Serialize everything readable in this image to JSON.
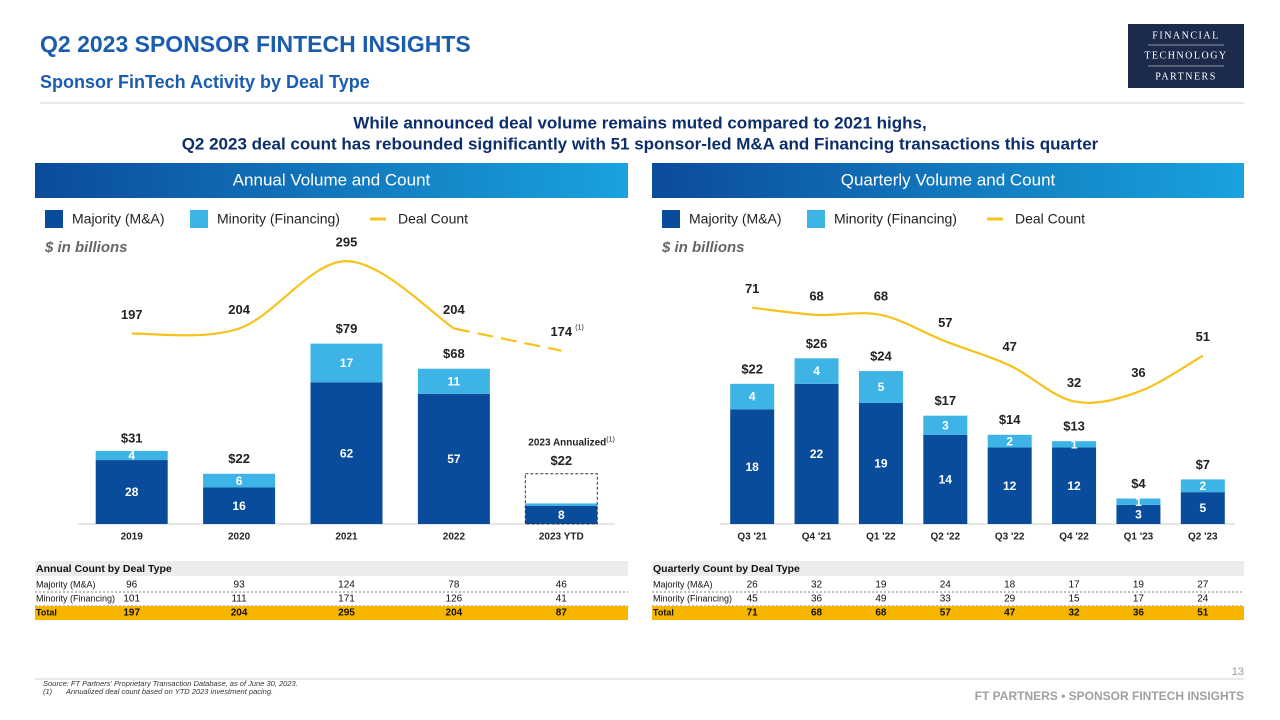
{
  "header": {
    "title": "Q2 2023 SPONSOR FINTECH INSIGHTS",
    "subtitle": "Sponsor FinTech Activity by Deal Type",
    "logo": [
      "FINANCIAL",
      "TECHNOLOGY",
      "PARTNERS"
    ]
  },
  "headline": [
    "While announced deal volume remains muted compared to 2021 highs,",
    "Q2 2023 deal count has rebounded significantly with 51 sponsor-led M&A and Financing transactions this quarter"
  ],
  "chart_data": [
    {
      "type": "bar",
      "stacked": true,
      "title": "Annual Volume and Count",
      "unit_label": "$ in billions",
      "categories": [
        "2019",
        "2020",
        "2021",
        "2022",
        "2023 YTD"
      ],
      "series": [
        {
          "name": "Majority (M&A)",
          "color": "#0a4c9c",
          "values": [
            28,
            16,
            62,
            57,
            8
          ]
        },
        {
          "name": "Minority (Financing)",
          "color": "#3db3e6",
          "values": [
            4,
            6,
            17,
            11,
            1
          ],
          "value_labels": [
            "4",
            "6",
            "17",
            "11",
            null
          ]
        },
        {
          "name": "Deal Count",
          "type": "line",
          "axis": "y2",
          "color": "#f7c21b",
          "values": [
            197,
            204,
            295,
            204,
            174
          ],
          "projected": [
            false,
            false,
            false,
            false,
            true
          ],
          "value_notes": [
            null,
            null,
            null,
            null,
            "(1)"
          ]
        }
      ],
      "totals": {
        "values": [
          31,
          22,
          79,
          68,
          null
        ],
        "value_labels": [
          "$31",
          "$22",
          "$79",
          "$68",
          null
        ]
      },
      "annotation": {
        "text": "2023 Annualized",
        "note": "(1)",
        "value": 22,
        "value_label": "$22"
      },
      "ylim": [
        0,
        120
      ],
      "y2lim": [
        -60,
        310
      ]
    },
    {
      "type": "bar",
      "stacked": true,
      "title": "Quarterly Volume and Count",
      "unit_label": "$ in billions",
      "categories": [
        "Q3 '21",
        "Q4 '21",
        "Q1 '22",
        "Q2 '22",
        "Q3 '22",
        "Q4 '22",
        "Q1 '23",
        "Q2 '23"
      ],
      "series": [
        {
          "name": "Majority (M&A)",
          "color": "#0a4c9c",
          "values": [
            18,
            22,
            19,
            14,
            12,
            12,
            3,
            5
          ]
        },
        {
          "name": "Minority (Financing)",
          "color": "#3db3e6",
          "values": [
            4,
            4,
            5,
            3,
            2,
            1,
            1,
            2
          ]
        },
        {
          "name": "Deal Count",
          "type": "line",
          "axis": "y2",
          "color": "#f7c21b",
          "values": [
            71,
            68,
            68,
            57,
            47,
            32,
            36,
            51
          ]
        }
      ],
      "totals": {
        "values": [
          22,
          26,
          24,
          17,
          14,
          13,
          4,
          7
        ],
        "value_labels": [
          "$22",
          "$26",
          "$24",
          "$17",
          "$14",
          "$13",
          "$4",
          "$7"
        ]
      },
      "ylim": [
        0,
        43
      ],
      "y2lim": [
        -19,
        95
      ]
    }
  ],
  "tables": [
    {
      "title": "Annual Count by Deal Type",
      "rows": [
        {
          "label": "Majority (M&A)",
          "values": [
            96,
            93,
            124,
            78,
            46
          ]
        },
        {
          "label": "Minority (Financing)",
          "values": [
            101,
            111,
            171,
            126,
            41
          ]
        },
        {
          "label": "Total",
          "values": [
            197,
            204,
            295,
            204,
            87
          ]
        }
      ]
    },
    {
      "title": "Quarterly Count by Deal Type",
      "rows": [
        {
          "label": "Majority (M&A)",
          "values": [
            26,
            32,
            19,
            24,
            18,
            17,
            19,
            27
          ]
        },
        {
          "label": "Minority (Financing)",
          "values": [
            45,
            36,
            49,
            33,
            29,
            15,
            17,
            24
          ]
        },
        {
          "label": "Total",
          "values": [
            71,
            68,
            68,
            57,
            47,
            32,
            36,
            51
          ]
        }
      ]
    }
  ],
  "footer": {
    "source": "Source: FT Partners' Proprietary Transaction Database, as of June 30, 2023.",
    "notes": [
      {
        "marker": "(1)",
        "text": "Annualized deal count based on YTD 2023 investment pacing."
      }
    ],
    "page": 13,
    "brand": "FT PARTNERS • SPONSOR FINTECH INSIGHTS"
  }
}
